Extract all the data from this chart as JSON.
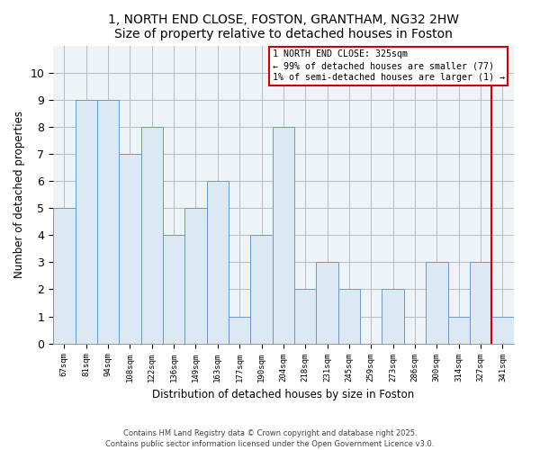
{
  "title": "1, NORTH END CLOSE, FOSTON, GRANTHAM, NG32 2HW",
  "subtitle": "Size of property relative to detached houses in Foston",
  "xlabel": "Distribution of detached houses by size in Foston",
  "ylabel": "Number of detached properties",
  "bar_labels": [
    "67sqm",
    "81sqm",
    "94sqm",
    "108sqm",
    "122sqm",
    "136sqm",
    "149sqm",
    "163sqm",
    "177sqm",
    "190sqm",
    "204sqm",
    "218sqm",
    "231sqm",
    "245sqm",
    "259sqm",
    "273sqm",
    "286sqm",
    "300sqm",
    "314sqm",
    "327sqm",
    "341sqm"
  ],
  "bar_values": [
    5,
    9,
    9,
    7,
    8,
    4,
    5,
    6,
    1,
    4,
    8,
    2,
    3,
    2,
    0,
    2,
    0,
    3,
    1,
    3,
    1
  ],
  "bar_color": "#dce9f5",
  "bar_edge_color": "#6699cc",
  "ylim": [
    0,
    11
  ],
  "yticks": [
    0,
    1,
    2,
    3,
    4,
    5,
    6,
    7,
    8,
    9,
    10
  ],
  "grid_color": "#bbbbbb",
  "bg_color": "#eef3f8",
  "property_line_color": "#cc0000",
  "annotation_title": "1 NORTH END CLOSE: 325sqm",
  "annotation_line1": "← 99% of detached houses are smaller (77)",
  "annotation_line2": "1% of semi-detached houses are larger (1) →",
  "footer_line1": "Contains HM Land Registry data © Crown copyright and database right 2025.",
  "footer_line2": "Contains public sector information licensed under the Open Government Licence v3.0."
}
